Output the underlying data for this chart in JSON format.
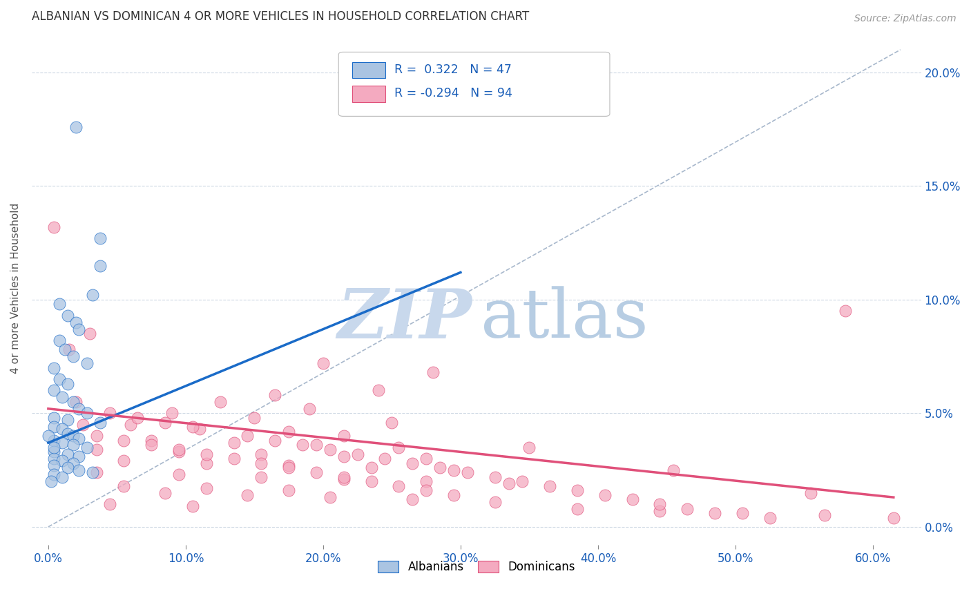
{
  "title": "ALBANIAN VS DOMINICAN 4 OR MORE VEHICLES IN HOUSEHOLD CORRELATION CHART",
  "source": "Source: ZipAtlas.com",
  "xlabel_ticks": [
    "0.0%",
    "10.0%",
    "20.0%",
    "30.0%",
    "40.0%",
    "50.0%",
    "60.0%"
  ],
  "xlabel_vals": [
    0.0,
    0.1,
    0.2,
    0.3,
    0.4,
    0.5,
    0.6
  ],
  "ylabel_ticks": [
    "0.0%",
    "5.0%",
    "10.0%",
    "15.0%",
    "20.0%"
  ],
  "ylabel_vals": [
    0.0,
    0.05,
    0.1,
    0.15,
    0.2
  ],
  "ylabel_label": "4 or more Vehicles in Household",
  "xlim": [
    -0.012,
    0.635
  ],
  "ylim": [
    -0.008,
    0.218
  ],
  "albanian_R": 0.322,
  "albanian_N": 47,
  "dominican_R": -0.294,
  "dominican_N": 94,
  "albanian_color": "#aac4e2",
  "albanian_line_color": "#1a6bc8",
  "dominican_color": "#f4aac0",
  "dominican_line_color": "#e0507a",
  "diagonal_color": "#a8b8cc",
  "watermark_ZIP_color": "#ccd8e8",
  "watermark_atlas_color": "#b8cce0",
  "albanian_line_x": [
    0.0,
    0.3
  ],
  "albanian_line_y": [
    0.037,
    0.112
  ],
  "dominican_line_x": [
    0.0,
    0.615
  ],
  "dominican_line_y": [
    0.052,
    0.013
  ],
  "albanian_scatter": [
    [
      0.02,
      0.176
    ],
    [
      0.038,
      0.127
    ],
    [
      0.038,
      0.115
    ],
    [
      0.032,
      0.102
    ],
    [
      0.008,
      0.098
    ],
    [
      0.014,
      0.093
    ],
    [
      0.02,
      0.09
    ],
    [
      0.022,
      0.087
    ],
    [
      0.008,
      0.082
    ],
    [
      0.012,
      0.078
    ],
    [
      0.018,
      0.075
    ],
    [
      0.028,
      0.072
    ],
    [
      0.004,
      0.07
    ],
    [
      0.008,
      0.065
    ],
    [
      0.014,
      0.063
    ],
    [
      0.004,
      0.06
    ],
    [
      0.01,
      0.057
    ],
    [
      0.018,
      0.055
    ],
    [
      0.022,
      0.052
    ],
    [
      0.028,
      0.05
    ],
    [
      0.004,
      0.048
    ],
    [
      0.014,
      0.047
    ],
    [
      0.038,
      0.046
    ],
    [
      0.004,
      0.044
    ],
    [
      0.01,
      0.043
    ],
    [
      0.014,
      0.041
    ],
    [
      0.018,
      0.04
    ],
    [
      0.022,
      0.039
    ],
    [
      0.004,
      0.038
    ],
    [
      0.01,
      0.037
    ],
    [
      0.018,
      0.036
    ],
    [
      0.028,
      0.035
    ],
    [
      0.004,
      0.033
    ],
    [
      0.014,
      0.032
    ],
    [
      0.022,
      0.031
    ],
    [
      0.004,
      0.03
    ],
    [
      0.01,
      0.029
    ],
    [
      0.018,
      0.028
    ],
    [
      0.004,
      0.027
    ],
    [
      0.014,
      0.026
    ],
    [
      0.022,
      0.025
    ],
    [
      0.032,
      0.024
    ],
    [
      0.004,
      0.023
    ],
    [
      0.01,
      0.022
    ],
    [
      0.004,
      0.035
    ],
    [
      0.0,
      0.04
    ],
    [
      0.002,
      0.02
    ]
  ],
  "dominican_scatter": [
    [
      0.004,
      0.132
    ],
    [
      0.58,
      0.095
    ],
    [
      0.03,
      0.085
    ],
    [
      0.015,
      0.078
    ],
    [
      0.2,
      0.072
    ],
    [
      0.28,
      0.068
    ],
    [
      0.24,
      0.06
    ],
    [
      0.165,
      0.058
    ],
    [
      0.125,
      0.055
    ],
    [
      0.19,
      0.052
    ],
    [
      0.09,
      0.05
    ],
    [
      0.15,
      0.048
    ],
    [
      0.25,
      0.046
    ],
    [
      0.06,
      0.045
    ],
    [
      0.11,
      0.043
    ],
    [
      0.175,
      0.042
    ],
    [
      0.215,
      0.04
    ],
    [
      0.075,
      0.038
    ],
    [
      0.135,
      0.037
    ],
    [
      0.195,
      0.036
    ],
    [
      0.255,
      0.035
    ],
    [
      0.035,
      0.034
    ],
    [
      0.095,
      0.033
    ],
    [
      0.155,
      0.032
    ],
    [
      0.215,
      0.031
    ],
    [
      0.275,
      0.03
    ],
    [
      0.055,
      0.029
    ],
    [
      0.115,
      0.028
    ],
    [
      0.175,
      0.027
    ],
    [
      0.235,
      0.026
    ],
    [
      0.295,
      0.025
    ],
    [
      0.035,
      0.024
    ],
    [
      0.095,
      0.023
    ],
    [
      0.155,
      0.022
    ],
    [
      0.215,
      0.021
    ],
    [
      0.275,
      0.02
    ],
    [
      0.335,
      0.019
    ],
    [
      0.055,
      0.018
    ],
    [
      0.115,
      0.017
    ],
    [
      0.175,
      0.016
    ],
    [
      0.085,
      0.015
    ],
    [
      0.145,
      0.014
    ],
    [
      0.205,
      0.013
    ],
    [
      0.265,
      0.012
    ],
    [
      0.325,
      0.011
    ],
    [
      0.045,
      0.01
    ],
    [
      0.105,
      0.009
    ],
    [
      0.385,
      0.008
    ],
    [
      0.445,
      0.007
    ],
    [
      0.505,
      0.006
    ],
    [
      0.565,
      0.005
    ],
    [
      0.615,
      0.004
    ],
    [
      0.02,
      0.055
    ],
    [
      0.045,
      0.05
    ],
    [
      0.065,
      0.048
    ],
    [
      0.085,
      0.046
    ],
    [
      0.105,
      0.044
    ],
    [
      0.145,
      0.04
    ],
    [
      0.165,
      0.038
    ],
    [
      0.185,
      0.036
    ],
    [
      0.205,
      0.034
    ],
    [
      0.225,
      0.032
    ],
    [
      0.245,
      0.03
    ],
    [
      0.265,
      0.028
    ],
    [
      0.285,
      0.026
    ],
    [
      0.305,
      0.024
    ],
    [
      0.325,
      0.022
    ],
    [
      0.345,
      0.02
    ],
    [
      0.365,
      0.018
    ],
    [
      0.385,
      0.016
    ],
    [
      0.405,
      0.014
    ],
    [
      0.425,
      0.012
    ],
    [
      0.445,
      0.01
    ],
    [
      0.465,
      0.008
    ],
    [
      0.485,
      0.006
    ],
    [
      0.525,
      0.004
    ],
    [
      0.35,
      0.035
    ],
    [
      0.455,
      0.025
    ],
    [
      0.555,
      0.015
    ],
    [
      0.025,
      0.045
    ],
    [
      0.035,
      0.04
    ],
    [
      0.055,
      0.038
    ],
    [
      0.075,
      0.036
    ],
    [
      0.095,
      0.034
    ],
    [
      0.115,
      0.032
    ],
    [
      0.135,
      0.03
    ],
    [
      0.155,
      0.028
    ],
    [
      0.175,
      0.026
    ],
    [
      0.195,
      0.024
    ],
    [
      0.215,
      0.022
    ],
    [
      0.235,
      0.02
    ],
    [
      0.255,
      0.018
    ],
    [
      0.275,
      0.016
    ],
    [
      0.295,
      0.014
    ]
  ]
}
